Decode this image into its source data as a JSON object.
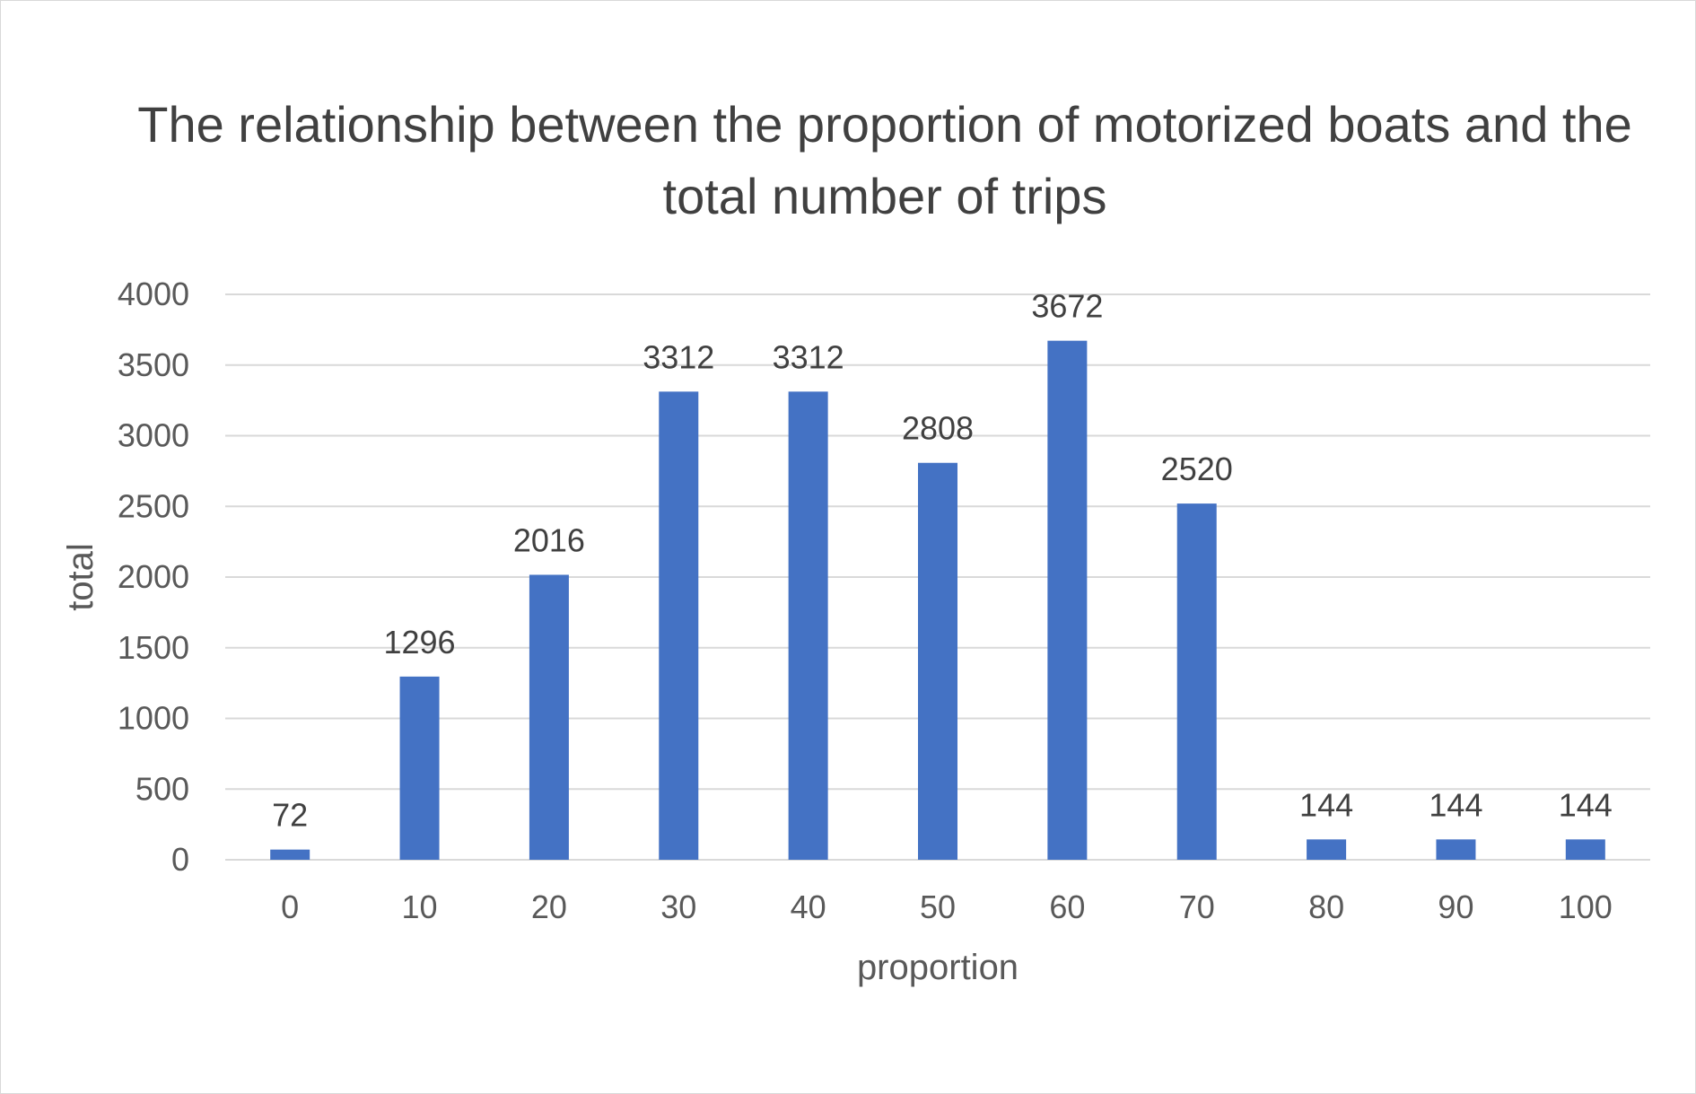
{
  "chart_data": {
    "type": "bar",
    "title": "The relationship between the proportion of motorized boats and the total number of trips",
    "xlabel": "proportion",
    "ylabel": "total",
    "categories": [
      "0",
      "10",
      "20",
      "30",
      "40",
      "50",
      "60",
      "70",
      "80",
      "90",
      "100"
    ],
    "values": [
      72,
      1296,
      2016,
      3312,
      3312,
      2808,
      3672,
      2520,
      144,
      144,
      144
    ],
    "ylim": [
      0,
      4000
    ],
    "yticks": [
      0,
      500,
      1000,
      1500,
      2000,
      2500,
      3000,
      3500,
      4000
    ],
    "grid": true,
    "legend": "none",
    "bar_color": "#4472C4",
    "grid_color": "#d9d9d9",
    "text_color": "#595959"
  }
}
